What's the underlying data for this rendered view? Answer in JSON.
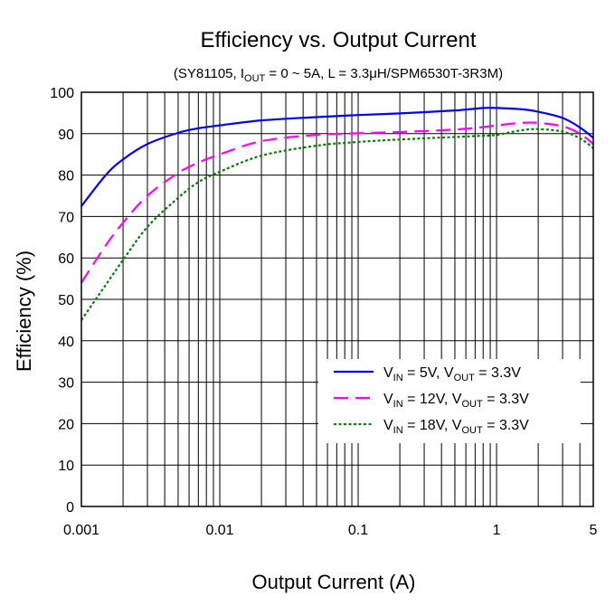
{
  "chart_data": {
    "type": "line",
    "title": "Efficiency vs. Output Current",
    "subtitle": "(SY81105, I_OUT = 0 ~ 5A, L = 3.3μH/SPM6530T-3R3M)",
    "subtitle_parts": {
      "prefix": "(SY81105, I",
      "sub": "OUT",
      "suffix": " = 0 ~ 5A, L = 3.3μH/SPM6530T-3R3M)"
    },
    "xlabel": "Output Current (A)",
    "ylabel": "Efficiency (%)",
    "xscale": "log",
    "xlim": [
      0.001,
      5
    ],
    "ylim": [
      0,
      100
    ],
    "x_ticks": [
      0.001,
      0.01,
      0.1,
      1,
      5
    ],
    "x_tick_labels": [
      "0.001",
      "0.01",
      "0.1",
      "1",
      "5"
    ],
    "y_ticks": [
      0,
      10,
      20,
      30,
      40,
      50,
      60,
      70,
      80,
      90,
      100
    ],
    "y_tick_labels": [
      "0",
      "10",
      "20",
      "30",
      "40",
      "50",
      "60",
      "70",
      "80",
      "90",
      "100"
    ],
    "grid": true,
    "legend_position": "bottom-right",
    "series": [
      {
        "name": "V_IN = 5V, V_OUT = 3.3V",
        "label_parts": [
          "V",
          "IN",
          " = 5V, V",
          "OUT",
          " = 3.3V"
        ],
        "color": "#0000ff",
        "style": "solid",
        "x": [
          0.001,
          0.0015,
          0.002,
          0.003,
          0.005,
          0.007,
          0.01,
          0.02,
          0.05,
          0.1,
          0.2,
          0.5,
          0.8,
          1.0,
          1.5,
          2.0,
          3.0,
          4.0,
          5.0
        ],
        "y": [
          72.5,
          80.0,
          83.8,
          87.5,
          90.2,
          91.3,
          92.0,
          93.2,
          94.0,
          94.5,
          94.9,
          95.6,
          96.2,
          96.2,
          95.9,
          95.3,
          93.8,
          91.5,
          89.0
        ]
      },
      {
        "name": "V_IN = 12V, V_OUT = 3.3V",
        "label_parts": [
          "V",
          "IN",
          " = 12V, V",
          "OUT",
          " = 3.3V"
        ],
        "color": "#ff00ff",
        "style": "dashed",
        "x": [
          0.001,
          0.0015,
          0.002,
          0.003,
          0.005,
          0.007,
          0.01,
          0.02,
          0.05,
          0.1,
          0.2,
          0.5,
          0.8,
          1.0,
          1.5,
          2.0,
          3.0,
          4.0,
          5.0
        ],
        "y": [
          54.0,
          63.0,
          68.5,
          75.0,
          80.5,
          83.0,
          85.0,
          88.2,
          89.7,
          90.1,
          90.4,
          91.0,
          91.6,
          92.0,
          92.6,
          92.6,
          91.8,
          90.0,
          87.5
        ]
      },
      {
        "name": "V_IN = 18V, V_OUT = 3.3V",
        "label_parts": [
          "V",
          "IN",
          " = 18V, V",
          "OUT",
          " = 3.3V"
        ],
        "color": "#008000",
        "style": "dotted",
        "x": [
          0.001,
          0.0015,
          0.002,
          0.003,
          0.005,
          0.007,
          0.01,
          0.02,
          0.05,
          0.1,
          0.2,
          0.5,
          0.8,
          1.0,
          1.5,
          2.0,
          3.0,
          4.0,
          5.0
        ],
        "y": [
          45.0,
          53.5,
          59.5,
          67.5,
          74.5,
          78.3,
          80.8,
          84.7,
          87.1,
          88.0,
          88.6,
          89.2,
          89.5,
          89.7,
          90.8,
          91.1,
          90.5,
          88.9,
          86.5
        ]
      }
    ]
  }
}
